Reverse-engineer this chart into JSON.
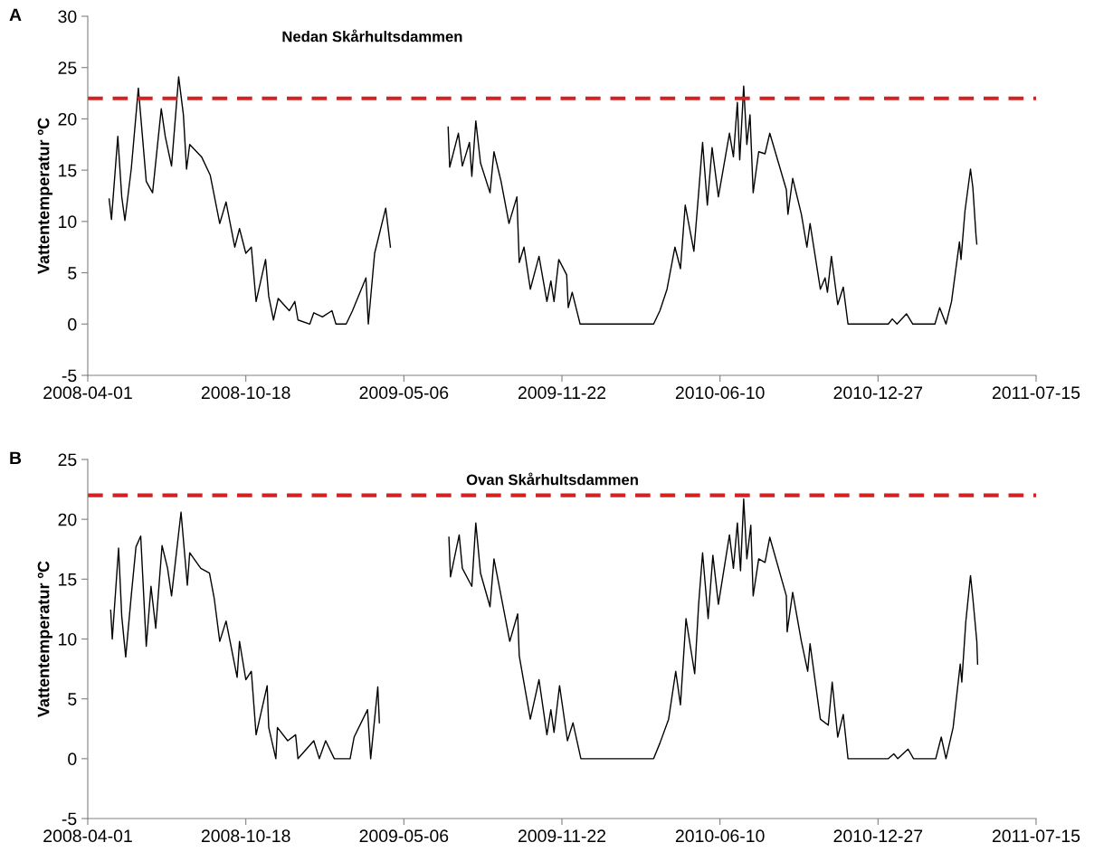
{
  "chart_data": [
    {
      "type": "line",
      "title": "Nedan Skårhultsdammen",
      "ylabel": "Vattentemperatur ºC",
      "annotations": [
        "A"
      ],
      "xlim": [
        "2008-04-01",
        "2011-07-15"
      ],
      "xticks": [
        "2008-04-01",
        "2008-10-18",
        "2009-05-06",
        "2009-11-22",
        "2010-06-10",
        "2010-12-27",
        "2011-07-15"
      ],
      "ylim": [
        -5,
        30
      ],
      "yticks": [
        -5,
        0,
        5,
        10,
        15,
        20,
        25,
        30
      ],
      "ref_lines": [
        {
          "axis": "y",
          "value": 22,
          "color": "#d42222",
          "line_style": "dashed"
        }
      ],
      "series": [
        {
          "color": "#000000",
          "x": [
            "2008-04-28",
            "2008-05-01",
            "2008-05-09",
            "2008-05-14",
            "2008-05-18",
            "2008-05-26",
            "2008-06-04",
            "2008-06-14",
            "2008-06-22",
            "2008-07-03",
            "2008-07-08",
            "2008-07-16",
            "2008-07-25",
            "2008-07-31",
            "2008-08-04",
            "2008-08-08",
            "2008-08-23",
            "2008-09-03",
            "2008-09-15",
            "2008-09-23",
            "2008-10-04",
            "2008-10-10",
            "2008-10-18",
            "2008-10-25",
            "2008-10-31",
            "2008-11-12",
            "2008-11-16",
            "2008-11-22",
            "2008-11-28",
            "2008-12-12",
            "2008-12-19",
            "2008-12-23",
            "2009-01-07",
            "2009-01-12",
            "2009-01-23",
            "2009-02-04",
            "2009-02-09",
            "2009-02-22",
            "2009-03-02",
            "2009-03-19",
            "2009-03-22",
            "2009-03-30",
            "2009-04-13",
            "2009-04-19",
            "2009-06-01",
            "2009-07-01",
            "2009-07-03",
            "2009-07-14",
            "2009-07-19",
            "2009-07-28",
            "2009-07-31",
            "2009-08-05",
            "2009-08-11",
            "2009-08-23",
            "2009-08-28",
            "2009-09-06",
            "2009-09-16",
            "2009-09-26",
            "2009-09-29",
            "2009-10-05",
            "2009-10-13",
            "2009-10-24",
            "2009-11-03",
            "2009-11-08",
            "2009-11-12",
            "2009-11-18",
            "2009-11-28",
            "2009-11-30",
            "2009-12-05",
            "2009-12-15",
            "2010-03-18",
            "2010-03-26",
            "2010-04-04",
            "2010-04-14",
            "2010-04-21",
            "2010-04-27",
            "2010-05-08",
            "2010-05-14",
            "2010-05-19",
            "2010-05-25",
            "2010-05-31",
            "2010-06-08",
            "2010-06-22",
            "2010-06-27",
            "2010-07-02",
            "2010-07-05",
            "2010-07-10",
            "2010-07-14",
            "2010-07-18",
            "2010-07-22",
            "2010-07-29",
            "2010-08-06",
            "2010-08-12",
            "2010-09-02",
            "2010-09-04",
            "2010-09-10",
            "2010-09-21",
            "2010-09-28",
            "2010-10-02",
            "2010-10-15",
            "2010-10-21",
            "2010-10-24",
            "2010-10-29",
            "2010-11-06",
            "2010-11-13",
            "2010-11-19",
            "2011-01-09",
            "2011-01-14",
            "2011-01-20",
            "2011-02-01",
            "2011-02-09",
            "2011-03-09",
            "2011-03-15",
            "2011-03-23",
            "2011-03-30",
            "2011-04-09",
            "2011-04-11",
            "2011-04-16",
            "2011-04-23",
            "2011-04-26",
            "2011-04-30",
            "2011-05-01"
          ],
          "values": [
            12.2,
            10.2,
            18.3,
            12.4,
            10.1,
            15.1,
            23.0,
            13.9,
            12.8,
            21.0,
            18.3,
            15.4,
            24.1,
            20.4,
            15.1,
            17.5,
            16.3,
            14.5,
            9.8,
            11.9,
            7.5,
            9.3,
            6.9,
            7.5,
            2.2,
            6.3,
            2.7,
            0.4,
            2.5,
            1.3,
            2.2,
            0.4,
            0,
            1.1,
            0.7,
            1.3,
            0,
            0,
            1.3,
            4.5,
            0,
            6.9,
            11.3,
            7.5,
            null,
            19.2,
            15.3,
            18.6,
            15.4,
            17.7,
            14.4,
            19.8,
            15.7,
            12.8,
            16.8,
            13.9,
            9.8,
            12.4,
            6.0,
            7.5,
            3.4,
            6.6,
            2.2,
            4.2,
            2.2,
            6.3,
            4.8,
            1.6,
            3.1,
            0,
            0,
            1.3,
            3.4,
            7.5,
            5.4,
            11.6,
            7.1,
            12.8,
            17.7,
            11.6,
            17.2,
            12.4,
            18.6,
            16.3,
            21.6,
            16.0,
            23.2,
            17.5,
            20.4,
            12.8,
            16.8,
            16.6,
            18.6,
            13.1,
            10.7,
            14.2,
            10.7,
            7.5,
            9.8,
            3.4,
            4.5,
            3.1,
            6.6,
            1.9,
            3.6,
            0,
            0,
            0.5,
            0,
            1.0,
            0,
            0,
            1.6,
            0,
            2.2,
            8.0,
            6.3,
            11.0,
            15.1,
            13.3,
            8.6,
            7.8
          ]
        }
      ]
    },
    {
      "type": "line",
      "title": "Ovan Skårhultsdammen",
      "ylabel": "Vattentemperatur ºC",
      "annotations": [
        "B"
      ],
      "xlim": [
        "2008-04-01",
        "2011-07-15"
      ],
      "xticks": [
        "2008-04-01",
        "2008-10-18",
        "2009-05-06",
        "2009-11-22",
        "2010-06-10",
        "2010-12-27",
        "2011-07-15"
      ],
      "ylim": [
        -5,
        25
      ],
      "yticks": [
        -5,
        0,
        5,
        10,
        15,
        20,
        25
      ],
      "ref_lines": [
        {
          "axis": "y",
          "value": 22,
          "color": "#d42222",
          "line_style": "dashed"
        }
      ],
      "series": [
        {
          "color": "#000000",
          "x": [
            "2008-04-30",
            "2008-05-02",
            "2008-05-10",
            "2008-05-14",
            "2008-05-19",
            "2008-05-26",
            "2008-06-01",
            "2008-06-07",
            "2008-06-14",
            "2008-06-20",
            "2008-06-26",
            "2008-07-04",
            "2008-07-11",
            "2008-07-16",
            "2008-07-28",
            "2008-08-05",
            "2008-08-08",
            "2008-08-22",
            "2008-09-02",
            "2008-09-08",
            "2008-09-15",
            "2008-09-23",
            "2008-10-07",
            "2008-10-10",
            "2008-10-18",
            "2008-10-25",
            "2008-10-31",
            "2008-11-14",
            "2008-11-16",
            "2008-11-25",
            "2008-11-27",
            "2008-12-10",
            "2008-12-20",
            "2008-12-23",
            "2009-01-12",
            "2009-01-19",
            "2009-01-27",
            "2009-02-07",
            "2009-02-27",
            "2009-03-04",
            "2009-03-21",
            "2009-03-25",
            "2009-04-03",
            "2009-04-05",
            "2009-06-01",
            "2009-07-02",
            "2009-07-04",
            "2009-07-15",
            "2009-07-19",
            "2009-07-31",
            "2009-08-05",
            "2009-08-11",
            "2009-08-23",
            "2009-08-28",
            "2009-09-06",
            "2009-09-17",
            "2009-09-27",
            "2009-09-29",
            "2009-10-13",
            "2009-10-24",
            "2009-11-03",
            "2009-11-08",
            "2009-11-12",
            "2009-11-19",
            "2009-11-29",
            "2009-12-06",
            "2009-12-16",
            "2010-03-18",
            "2010-03-26",
            "2010-04-06",
            "2010-04-15",
            "2010-04-21",
            "2010-04-28",
            "2010-05-09",
            "2010-05-14",
            "2010-05-19",
            "2010-05-26",
            "2010-06-01",
            "2010-06-08",
            "2010-06-22",
            "2010-06-27",
            "2010-07-02",
            "2010-07-06",
            "2010-07-10",
            "2010-07-14",
            "2010-07-19",
            "2010-07-22",
            "2010-07-29",
            "2010-08-06",
            "2010-08-12",
            "2010-09-02",
            "2010-09-03",
            "2010-09-10",
            "2010-09-21",
            "2010-09-29",
            "2010-10-02",
            "2010-10-15",
            "2010-10-25",
            "2010-10-30",
            "2010-11-06",
            "2010-11-13",
            "2010-11-19",
            "2011-01-09",
            "2011-01-16",
            "2011-01-21",
            "2011-02-03",
            "2011-02-10",
            "2011-03-10",
            "2011-03-17",
            "2011-03-23",
            "2011-04-01",
            "2011-04-10",
            "2011-04-12",
            "2011-04-17",
            "2011-04-23",
            "2011-04-26",
            "2011-05-01",
            "2011-05-02"
          ],
          "values": [
            12.4,
            10.0,
            17.6,
            11.9,
            8.5,
            13.6,
            17.7,
            18.6,
            9.4,
            14.4,
            10.9,
            17.8,
            15.9,
            13.6,
            20.6,
            14.5,
            17.2,
            15.9,
            15.5,
            13.4,
            9.8,
            11.5,
            6.8,
            9.8,
            6.6,
            7.3,
            2.0,
            6.1,
            2.6,
            0,
            2.6,
            1.5,
            2.0,
            0,
            1.5,
            0,
            1.5,
            0,
            0,
            1.8,
            4.1,
            0,
            6.0,
            3.0,
            null,
            18.5,
            15.2,
            18.7,
            15.9,
            14.4,
            19.7,
            15.5,
            12.7,
            16.7,
            13.6,
            9.8,
            12.1,
            8.6,
            3.3,
            6.6,
            2.0,
            4.1,
            2.2,
            6.1,
            1.5,
            3.0,
            0,
            0,
            1.3,
            3.3,
            7.3,
            4.5,
            11.7,
            7.1,
            12.9,
            17.2,
            11.7,
            17.0,
            12.9,
            18.7,
            15.9,
            19.7,
            15.7,
            21.7,
            16.7,
            19.5,
            13.6,
            16.7,
            16.4,
            18.5,
            13.6,
            10.6,
            13.9,
            9.8,
            7.3,
            9.6,
            3.3,
            2.8,
            6.4,
            1.8,
            3.7,
            0,
            0,
            0.4,
            0,
            0.8,
            0,
            0,
            1.8,
            0,
            2.6,
            7.9,
            6.4,
            11.4,
            15.3,
            13.4,
            9.8,
            7.9
          ]
        }
      ]
    }
  ]
}
